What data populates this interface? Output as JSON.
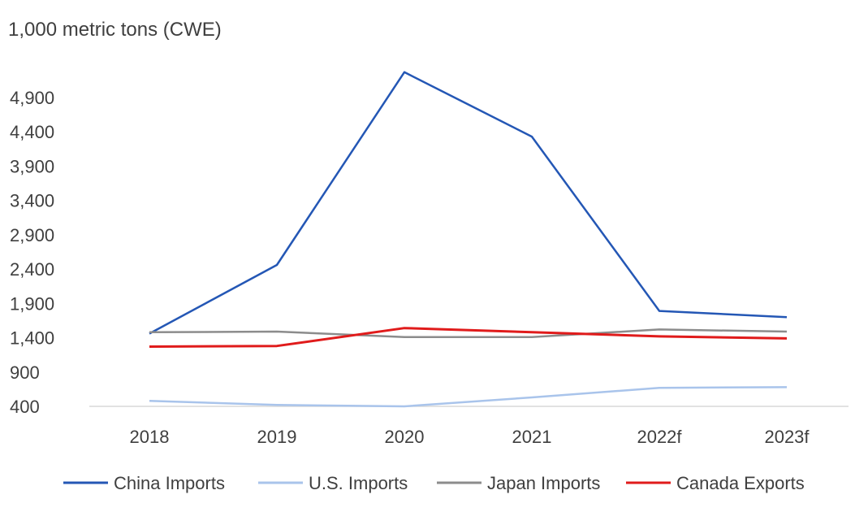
{
  "chart_data": {
    "type": "line",
    "ylabel": "1,000 metric tons (CWE)",
    "categories": [
      "2018",
      "2019",
      "2020",
      "2021",
      "2022f",
      "2023f"
    ],
    "yticks": [
      "4,900",
      "4,400",
      "3,900",
      "3,400",
      "2,900",
      "2,400",
      "1,900",
      "1,400",
      "900",
      "400"
    ],
    "ylim": [
      400,
      5400
    ],
    "series": [
      {
        "name": "China Imports",
        "color": "#2457b5",
        "values": [
          1460,
          2460,
          5270,
          4330,
          1790,
          1700
        ]
      },
      {
        "name": "U.S. Imports",
        "color": "#a9c4eb",
        "values": [
          480,
          420,
          400,
          530,
          670,
          680
        ]
      },
      {
        "name": "Japan Imports",
        "color": "#8c8c8c",
        "values": [
          1480,
          1490,
          1410,
          1410,
          1520,
          1490
        ]
      },
      {
        "name": "Canada Exports",
        "color": "#e01b1b",
        "values": [
          1270,
          1280,
          1540,
          1480,
          1420,
          1390
        ]
      }
    ]
  }
}
